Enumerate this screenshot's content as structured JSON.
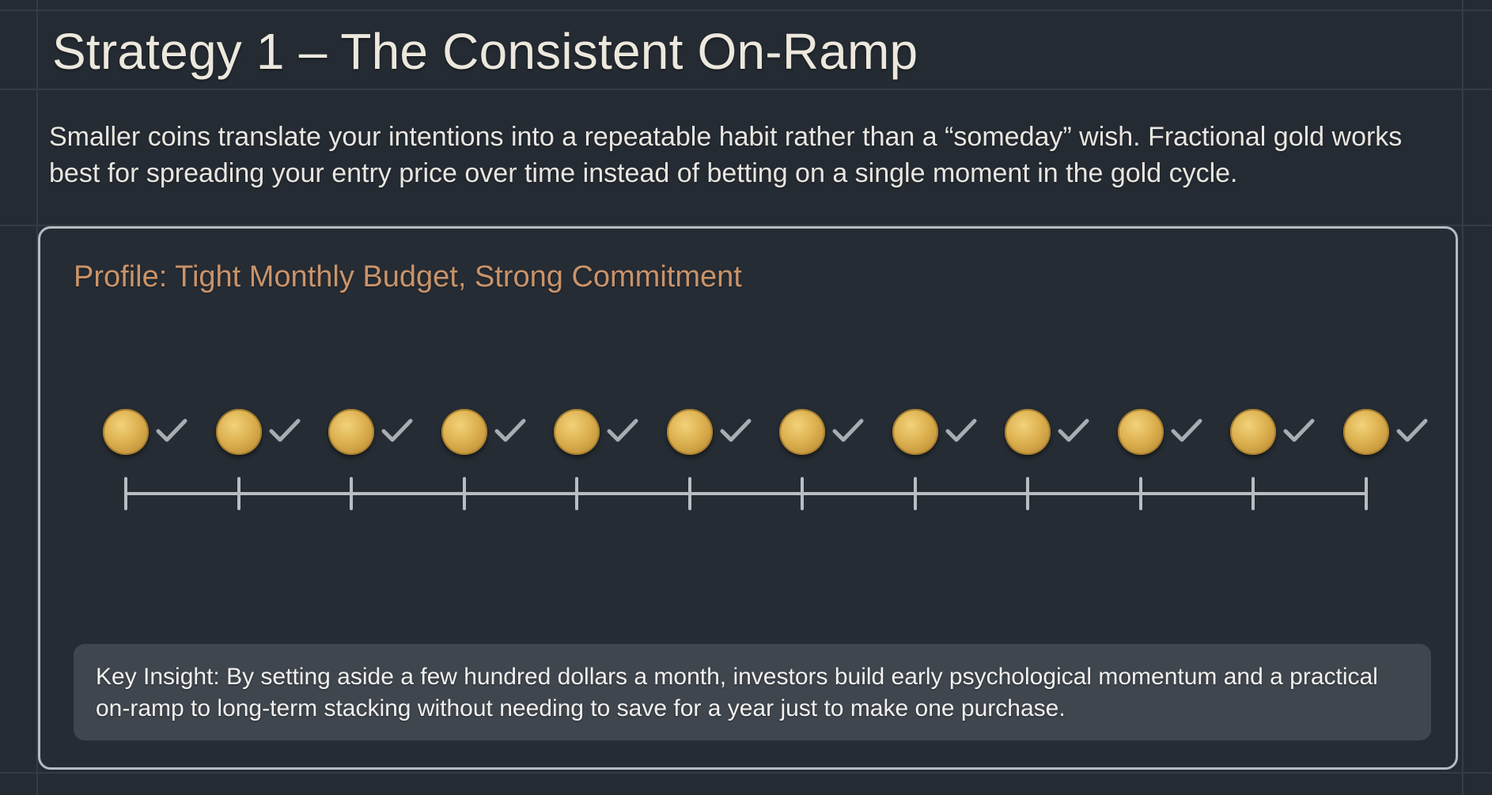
{
  "slide": {
    "title": "Strategy 1 – The Consistent On-Ramp",
    "intro": "Smaller coins translate your intentions into a repeatable habit rather than a “someday” wish. Fractional gold works best for spreading your entry price over time instead of betting on a single moment in the gold cycle."
  },
  "card": {
    "profile": "Profile: Tight Monthly Budget, Strong Commitment",
    "timeline": {
      "coin_count": 12,
      "coin_icon": "gold-coin-icon",
      "status_icon": "checkmark-icon",
      "all_checked": true
    },
    "insight": "Key Insight: By setting aside a few hundred dollars a month, investors build early psychological momentum and a practical on-ramp to long-term stacking without needing to save for a year just to make one purchase."
  },
  "colors": {
    "background": "#252b33",
    "title": "#ece8dd",
    "profile_accent": "#c9936a",
    "card_border": "#b7bbc1",
    "insight_bg": "#40464e",
    "coin_gold": "#dcb04f",
    "check_gray": "#a8adb4"
  }
}
